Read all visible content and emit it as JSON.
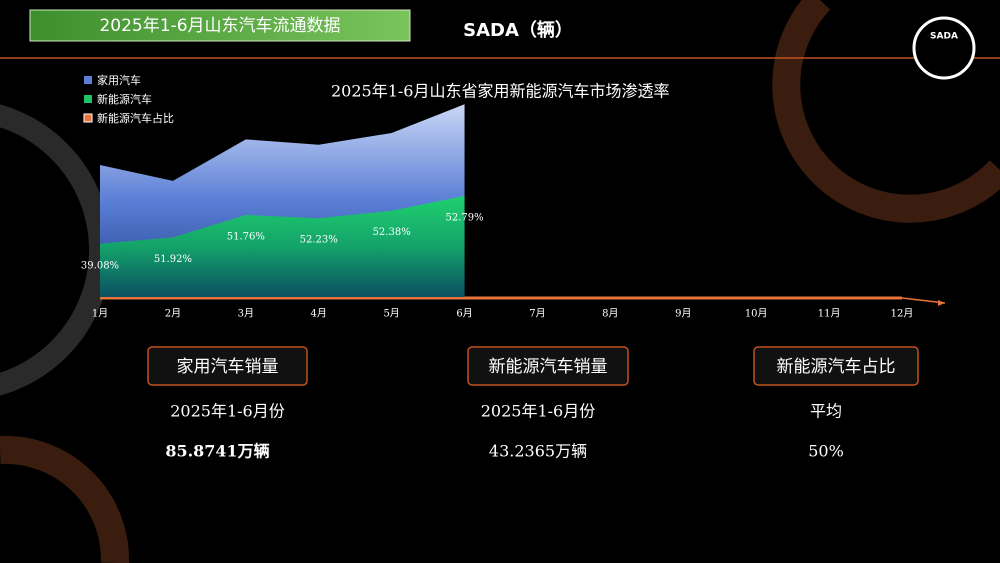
{
  "header": {
    "title": "2025年1-6月山东汽车流通数据",
    "unit": "SADA（辆）",
    "logo": "SADA"
  },
  "chart_data": {
    "type": "area",
    "title": "2025年1-6月山东省家用新能源汽车市场渗透率",
    "categories": [
      "1月",
      "2月",
      "3月",
      "4月",
      "5月",
      "6月",
      "7月",
      "8月",
      "9月",
      "10月",
      "11月",
      "12月"
    ],
    "ylim": [
      0,
      20
    ],
    "legend": "top-left",
    "series": [
      {
        "name": "家用汽车",
        "color": "#5b7fd6",
        "values": [
          12.4,
          10.9,
          14.8,
          14.3,
          15.4,
          18.1,
          null,
          null,
          null,
          null,
          null,
          null
        ]
      },
      {
        "name": "新能源汽车",
        "color": "#1fc46a",
        "values": [
          5.0,
          5.6,
          7.7,
          7.4,
          8.1,
          9.5,
          null,
          null,
          null,
          null,
          null,
          null
        ]
      },
      {
        "name": "新能源汽车占比",
        "color": "#e8743b",
        "values": [
          39.08,
          51.92,
          51.76,
          52.23,
          52.38,
          52.79,
          null,
          null,
          null,
          null,
          null,
          null
        ],
        "value_labels": [
          "39.08%",
          "51.92%",
          "51.76%",
          "52.23%",
          "52.38%",
          "52.79%",
          null,
          null,
          null,
          null,
          null,
          null
        ]
      }
    ]
  },
  "cards": [
    {
      "title": "家用汽车销量",
      "subtitle": "2025年1-6月份",
      "value": "85.8741万辆"
    },
    {
      "title": "新能源汽车销量",
      "subtitle": "2025年1-6月份",
      "value": "43.2365万辆"
    },
    {
      "title": "新能源汽车占比",
      "subtitle": "平均",
      "value": "50%"
    }
  ]
}
